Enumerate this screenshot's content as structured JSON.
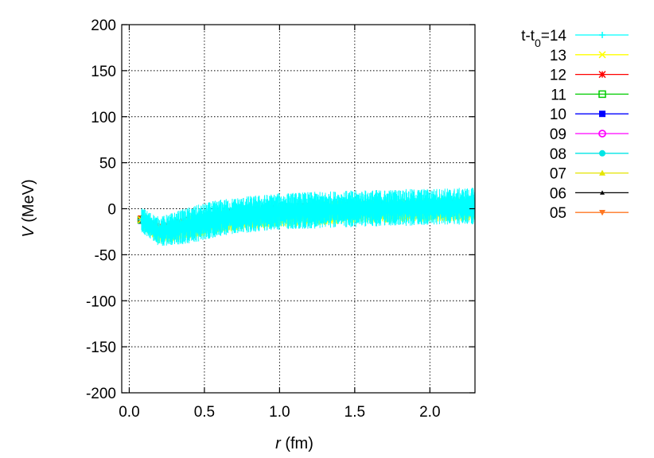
{
  "chart_data": {
    "type": "scatter",
    "title": "",
    "xlabel_var": "r",
    "xlabel_unit": " (fm)",
    "ylabel_var": "V",
    "ylabel_unit": " (MeV)",
    "xlim": [
      -0.05,
      2.3
    ],
    "ylim": [
      -200,
      200
    ],
    "grid": true,
    "legend_position": "right",
    "x_ticks": [
      0.0,
      0.5,
      1.0,
      1.5,
      2.0
    ],
    "x_tick_labels": [
      "0.0",
      "0.5",
      "1.0",
      "1.5",
      "2.0"
    ],
    "y_ticks": [
      -200,
      -150,
      -100,
      -50,
      0,
      50,
      100,
      150,
      200
    ],
    "y_tick_labels": [
      "-200",
      "-150",
      "-100",
      "-50",
      "0",
      "50",
      "100",
      "150",
      "200"
    ],
    "legend_prefix": "t-t",
    "legend_sub": "0",
    "legend_eq": "=",
    "series": [
      {
        "name": "14",
        "color": "#00ffff",
        "marker": "plus",
        "noise": 20,
        "x": [
          0.08,
          0.2,
          0.4,
          0.6,
          0.8,
          1.0,
          1.5,
          2.0,
          2.3
        ],
        "y": [
          -12,
          -25,
          -18,
          -10,
          -6,
          -3,
          0,
          2,
          3
        ]
      },
      {
        "name": "13",
        "color": "#ffff00",
        "marker": "cross",
        "noise": 13,
        "x": [
          0.08,
          0.2,
          0.4,
          0.6,
          0.8,
          1.0,
          1.5,
          2.0,
          2.3
        ],
        "y": [
          -12,
          -28,
          -20,
          -14,
          -10,
          -7,
          -3,
          -1,
          0
        ]
      },
      {
        "name": "12",
        "color": "#ff0000",
        "marker": "star",
        "noise": 8,
        "x": [
          0.08,
          0.2,
          0.4,
          0.6,
          0.8,
          1.0,
          1.5,
          2.0,
          2.3
        ],
        "y": [
          -11,
          -24,
          -15,
          -9,
          -5,
          -2,
          1,
          2,
          2
        ]
      },
      {
        "name": "11",
        "color": "#00cc00",
        "marker": "square-open",
        "noise": 1,
        "x": [
          0.08,
          0.2,
          0.4,
          0.6,
          0.8,
          1.0,
          1.5,
          2.0,
          2.3
        ],
        "y": [
          -12,
          -27,
          -22,
          -16,
          -12,
          -9,
          -7,
          -6,
          -6
        ]
      },
      {
        "name": "10",
        "color": "#0000ff",
        "marker": "square",
        "noise": 1,
        "x": [
          0.08,
          0.2,
          0.4,
          0.6,
          0.8,
          1.0,
          1.5,
          2.0,
          2.3
        ],
        "y": [
          -13,
          -29,
          -18,
          -9,
          -4,
          -1,
          2,
          4,
          4
        ]
      },
      {
        "name": "09",
        "color": "#ff00ff",
        "marker": "circle-open",
        "noise": 1,
        "x": [
          0.08,
          0.2,
          0.4,
          0.6,
          0.8,
          1.0,
          1.5,
          2.0,
          2.3
        ],
        "y": [
          -12,
          -26,
          -17,
          -10,
          -6,
          -3,
          0,
          1,
          1
        ]
      },
      {
        "name": "08",
        "color": "#00e5e5",
        "marker": "circle",
        "noise": 1,
        "x": [
          0.08,
          0.2,
          0.4,
          0.6,
          0.8,
          1.0,
          1.5,
          2.0,
          2.3
        ],
        "y": [
          -11,
          -23,
          -15,
          -8,
          -4,
          -1,
          1,
          2,
          2
        ]
      },
      {
        "name": "07",
        "color": "#e5e500",
        "marker": "triangle",
        "noise": 1,
        "x": [
          0.08,
          0.2,
          0.4,
          0.6,
          0.8,
          1.0,
          1.5,
          2.0,
          2.3
        ],
        "y": [
          -11,
          -22,
          -14,
          -7,
          -3,
          -1,
          1,
          1,
          1
        ]
      },
      {
        "name": "06",
        "color": "#000000",
        "marker": "triangle-small",
        "noise": 1,
        "x": [
          0.08,
          0.2,
          0.4,
          0.6,
          0.8,
          1.0,
          1.5,
          2.0,
          2.3
        ],
        "y": [
          -10,
          -21,
          -12,
          -6,
          -2,
          0,
          1,
          1,
          1
        ]
      },
      {
        "name": "05",
        "color": "#ff7722",
        "marker": "triangle-down",
        "noise": 1,
        "x": [
          0.08,
          0.2,
          0.4,
          0.6,
          0.8,
          1.0,
          1.5,
          2.0,
          2.3
        ],
        "y": [
          -10,
          -20,
          -11,
          -5,
          -2,
          0,
          0,
          0,
          0
        ]
      }
    ]
  }
}
